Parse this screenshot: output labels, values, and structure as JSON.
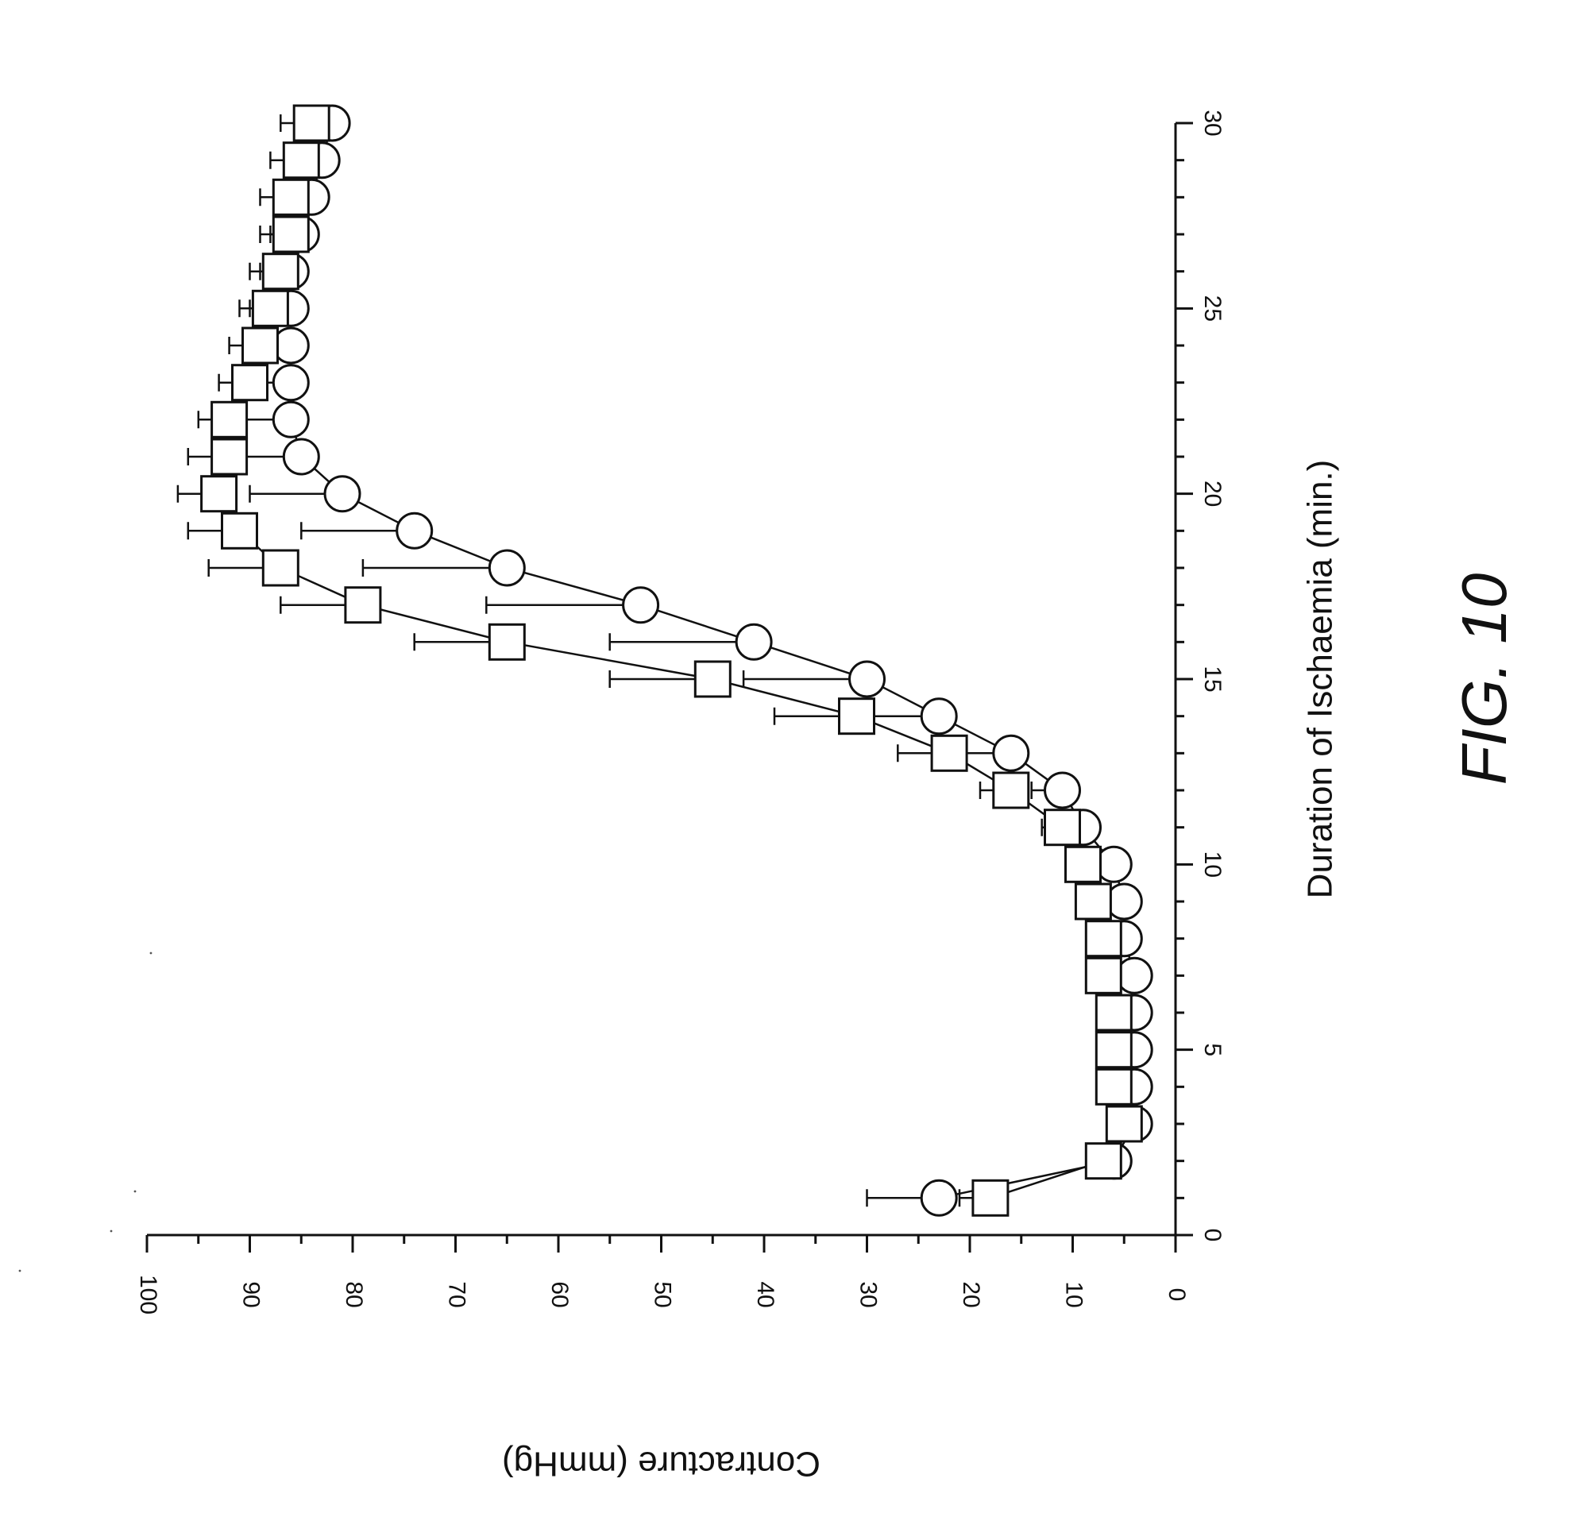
{
  "figure": {
    "caption": "FIG. 10"
  },
  "chart_data": {
    "type": "line",
    "xlabel": "Duration of Ischaemia (min.)",
    "ylabel": "Contracture (mmHg)",
    "xlim": [
      0,
      30
    ],
    "ylim": [
      0,
      100
    ],
    "xticks": [
      "0",
      "5",
      "10",
      "15",
      "20",
      "25",
      "30"
    ],
    "yticks": [
      "0",
      "10",
      "20",
      "30",
      "40",
      "50",
      "60",
      "70",
      "80",
      "90",
      "100"
    ],
    "grid": false,
    "legend": "none",
    "series": [
      {
        "marker": "circle",
        "x": [
          1,
          2,
          3,
          4,
          5,
          6,
          7,
          8,
          9,
          10,
          11,
          12,
          13,
          14,
          15,
          16,
          17,
          18,
          19,
          20,
          21,
          22,
          23,
          24,
          25,
          26,
          27,
          28,
          29,
          30
        ],
        "y": [
          23,
          6,
          4,
          4,
          4,
          4,
          4,
          5,
          5,
          6,
          9,
          11,
          16,
          23,
          30,
          41,
          52,
          65,
          74,
          81,
          85,
          86,
          86,
          86,
          86,
          86,
          85,
          84,
          83,
          82
        ],
        "err": [
          7,
          1,
          1,
          1,
          1,
          1,
          1,
          1,
          1,
          2,
          2,
          3,
          6,
          9,
          12,
          14,
          15,
          14,
          11,
          9,
          6,
          5,
          4,
          4,
          4,
          3,
          3,
          3,
          3,
          3
        ]
      },
      {
        "marker": "square",
        "x": [
          1,
          2,
          3,
          4,
          5,
          6,
          7,
          8,
          9,
          10,
          11,
          12,
          13,
          14,
          15,
          16,
          17,
          18,
          19,
          20,
          21,
          22,
          23,
          24,
          25,
          26,
          27,
          28,
          29,
          30
        ],
        "y": [
          18,
          7,
          5,
          6,
          6,
          6,
          7,
          7,
          8,
          9,
          11,
          16,
          22,
          31,
          45,
          65,
          79,
          87,
          91,
          93,
          92,
          92,
          90,
          89,
          88,
          87,
          86,
          86,
          85,
          84
        ],
        "err": [
          3,
          1,
          1,
          1,
          1,
          1,
          1,
          1,
          1,
          1,
          2,
          3,
          5,
          8,
          10,
          9,
          8,
          7,
          5,
          4,
          4,
          3,
          3,
          3,
          3,
          3,
          3,
          3,
          3,
          3
        ]
      }
    ]
  }
}
